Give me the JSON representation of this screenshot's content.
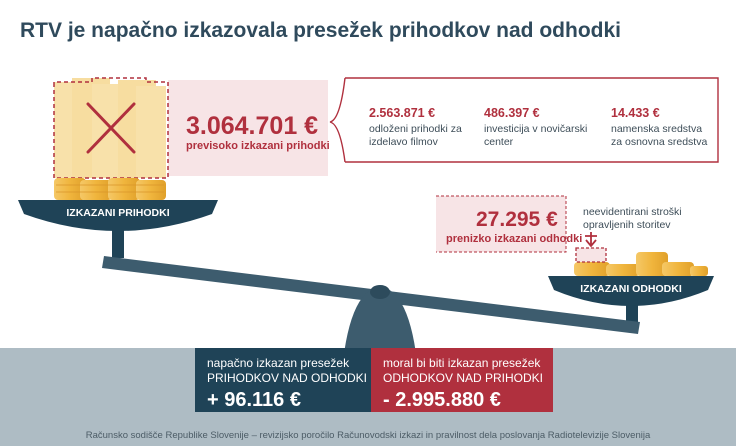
{
  "title": "RTV je napačno izkazovala presežek prihodkov nad odhodki",
  "left_pan": {
    "label": "IZKAZANI PRIHODKI",
    "amount": "3.064.701 €",
    "amount_caption": "previsoko izkazani prihodki"
  },
  "breakdown": [
    {
      "value": "2.563.871 €",
      "label": "odloženi prihodki za izdelavo filmov"
    },
    {
      "value": "486.397 €",
      "label": "investicija v novičarski center"
    },
    {
      "value": "14.433 €",
      "label": "namenska sredstva za osnovna sredstva"
    }
  ],
  "right_pan": {
    "label": "IZKAZANI ODHODKI",
    "amount": "27.295 €",
    "amount_caption": "prenizko izkazani odhodki",
    "note": "neevidentirani stroški opravljenih storitev"
  },
  "result_wrong": {
    "line1": "napačno izkazan presežek",
    "line2": "PRIHODKOV NAD ODHODKI",
    "value": "+ 96.116 €"
  },
  "result_right": {
    "line1": "moral bi biti izkazan presežek",
    "line2": "ODHODKOV NAD PRIHODKI",
    "value": "- 2.995.880 €"
  },
  "footer": "Računsko sodišče Republike Slovenije – revizijsko poročilo Računovodski izkazi in pravilnost dela poslovanja Radiotelevizije Slovenija",
  "colors": {
    "red": "#b0303e",
    "navy": "#1f4357",
    "slate": "#3d5c6e",
    "gold": "#f0b841",
    "floor": "#aebcc4"
  }
}
